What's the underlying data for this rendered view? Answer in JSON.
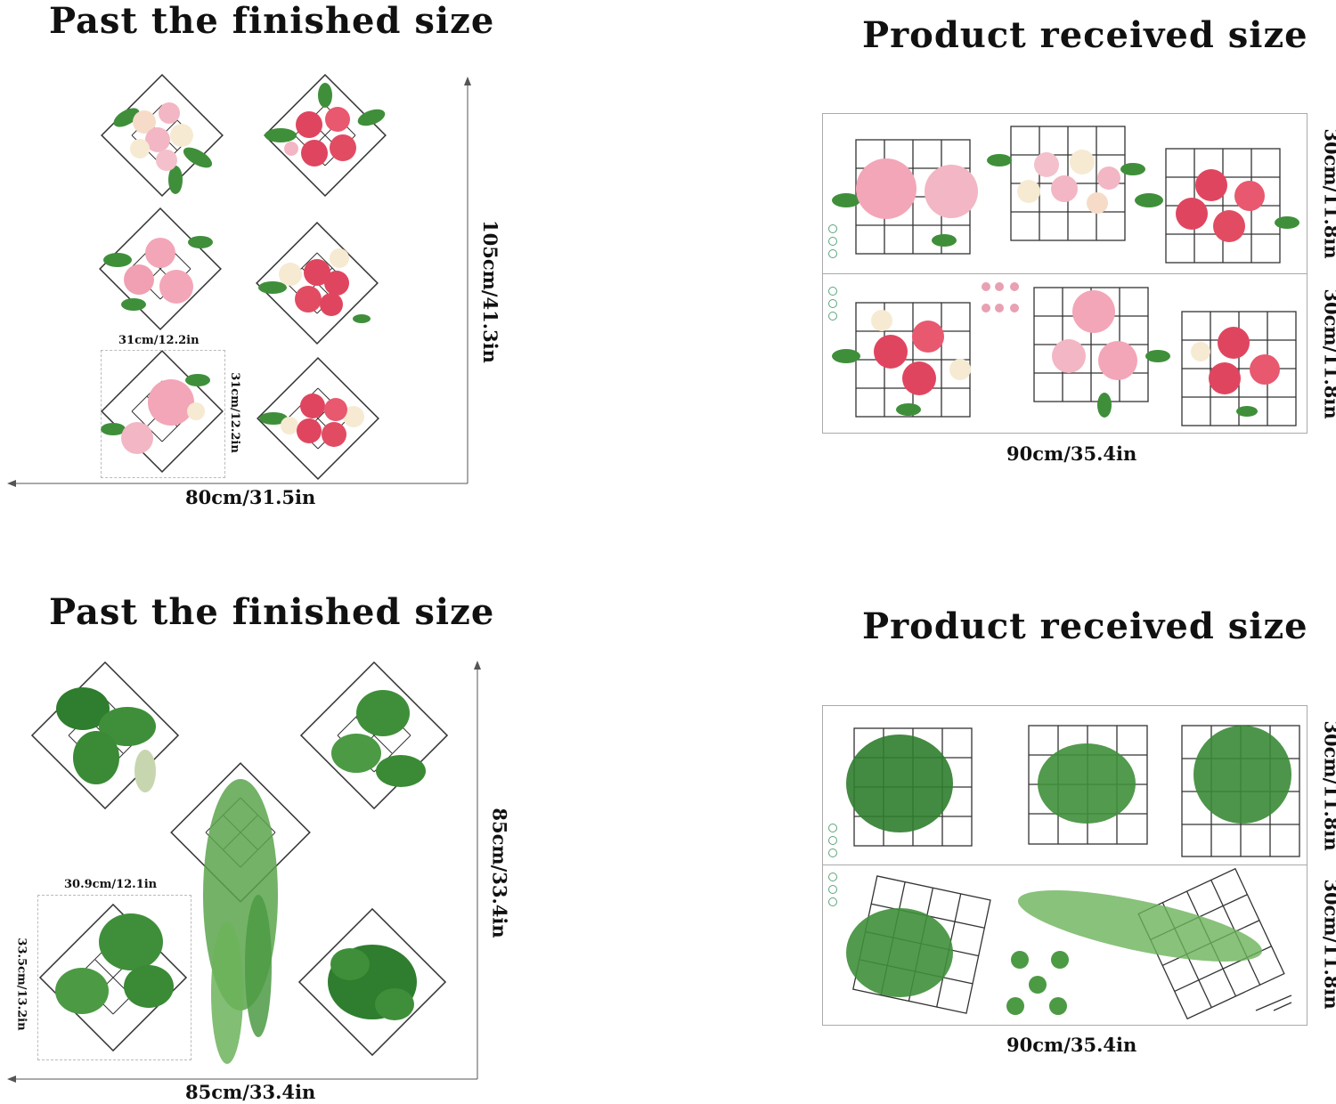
{
  "top_section": {
    "finished_title": "Past the finished size",
    "received_title": "Product received size",
    "finished_width": "80cm/31.5in",
    "finished_height": "105cm/41.3in",
    "sample_width": "31cm/12.2in",
    "sample_height": "31cm/12.2in",
    "received_width": "90cm/35.4in",
    "received_row1_height": "30cm/11.8in",
    "received_row2_height": "30cm/11.8in"
  },
  "bottom_section": {
    "finished_title": "Past the finished size",
    "received_title": "Product received size",
    "finished_width": "85cm/33.4in",
    "finished_height": "85cm/33.4in",
    "sample_width": "30.9cm/12.1in",
    "sample_height": "33.5cm/13.2in",
    "received_width": "90cm/35.4in",
    "received_row1_height": "30cm/11.8in",
    "received_row2_height": "30cm/11.8in"
  },
  "colors": {
    "rose_pink": "#f3a6b8",
    "rose_red": "#e0455f",
    "rose_cream": "#f6ead2",
    "leaf_green": "#3f8f3a",
    "leaf_dark": "#2c6e2a",
    "grid_line": "#333333"
  }
}
